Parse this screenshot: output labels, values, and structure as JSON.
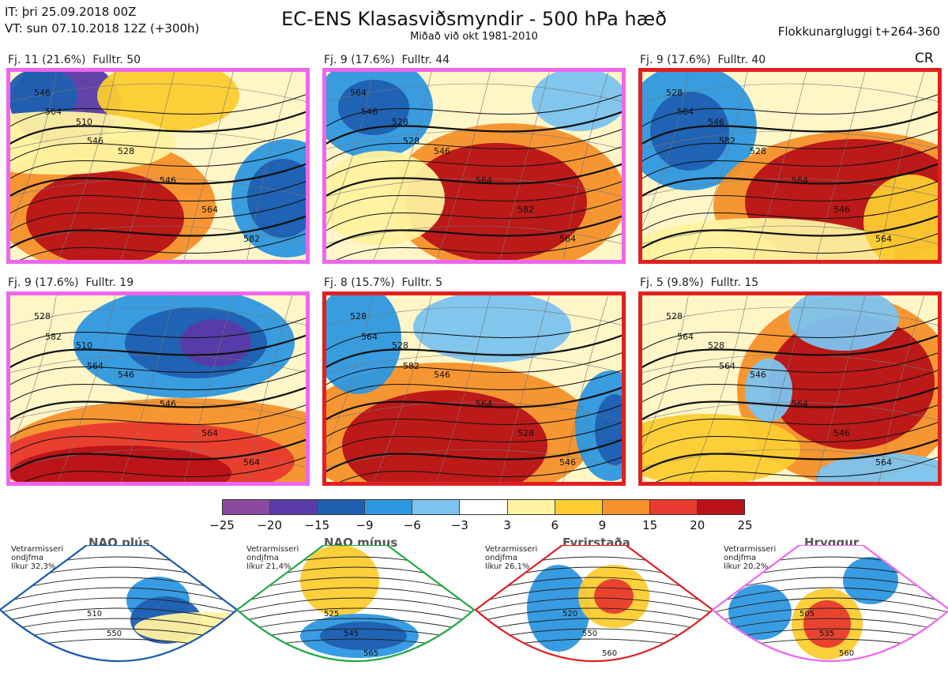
{
  "header": {
    "init_line": "IT: þri 25.09.2018 00Z",
    "valid_line": "VT: sun 07.10.2018 12Z  (+300h)",
    "title": "EC-ENS Klasasviðsmyndir - 500 hPa hæð",
    "subtitle": "Miðað við okt 1981-2010",
    "window": "Flokkunargluggi t+264-360",
    "cr_tag": "CR"
  },
  "panels": [
    {
      "label": "Fj. 11 (21.6%)  Fulltr. 50",
      "border": "#ee66ee",
      "contours": [
        "546",
        "510",
        "528",
        "546",
        "564",
        "582",
        "564",
        "546"
      ]
    },
    {
      "label": "Fj. 9 (17.6%)  Fulltr. 44",
      "border": "#ee66ee",
      "contours": [
        "564",
        "528",
        "546",
        "564",
        "582",
        "564",
        "546",
        "528"
      ]
    },
    {
      "label": "Fj. 9 (17.6%)  Fulltr. 40",
      "border": "#e02020",
      "contours": [
        "528",
        "546",
        "528",
        "564",
        "546",
        "564",
        "564",
        "582"
      ]
    },
    {
      "label": "Fj. 9 (17.6%)  Fulltr. 19",
      "border": "#ee66ee",
      "contours": [
        "528",
        "510",
        "546",
        "546",
        "564",
        "564",
        "582",
        "564"
      ]
    },
    {
      "label": "Fj. 8 (15.7%)  Fulltr. 5",
      "border": "#e02020",
      "contours": [
        "528",
        "528",
        "546",
        "564",
        "528",
        "546",
        "564",
        "582"
      ]
    },
    {
      "label": "Fj. 5 (9.8%)  Fulltr. 15",
      "border": "#e02020",
      "contours": [
        "528",
        "528",
        "546",
        "564",
        "546",
        "564",
        "564",
        "564"
      ]
    }
  ],
  "colorbar": {
    "colors": [
      "#8b4aa0",
      "#5a3aa8",
      "#1f5fb0",
      "#2d97e0",
      "#7cc3ef",
      "#ffffff",
      "#fff2a0",
      "#fccc30",
      "#f5902a",
      "#e83a2e",
      "#b81218"
    ],
    "ticks": [
      "−25",
      "−20",
      "−15",
      "−9",
      "−6",
      "−3",
      "3",
      "6",
      "9",
      "15",
      "20",
      "25"
    ]
  },
  "regimes": [
    {
      "title": "NAO plús",
      "note": [
        "Vetrarmisseri",
        "ondjfma",
        "líkur 32,3%"
      ],
      "color": "#1a5aa8",
      "contours": [
        "510",
        "550"
      ]
    },
    {
      "title": "NAO mínus",
      "note": [
        "Vetrarmisseri",
        "ondjfma",
        "líkur 21,4%"
      ],
      "color": "#22aa44",
      "contours": [
        "525",
        "545",
        "565"
      ]
    },
    {
      "title": "Fyrirstaða",
      "note": [
        "Vetrarmisseri",
        "ondjfma",
        "líkur 26,1%"
      ],
      "color": "#e02020",
      "contours": [
        "520",
        "550",
        "560"
      ]
    },
    {
      "title": "Hryggur",
      "note": [
        "Vetrarmisseri",
        "ondjfma",
        "líkur 20,2%"
      ],
      "color": "#ee66ee",
      "contours": [
        "505",
        "535",
        "560"
      ]
    }
  ]
}
